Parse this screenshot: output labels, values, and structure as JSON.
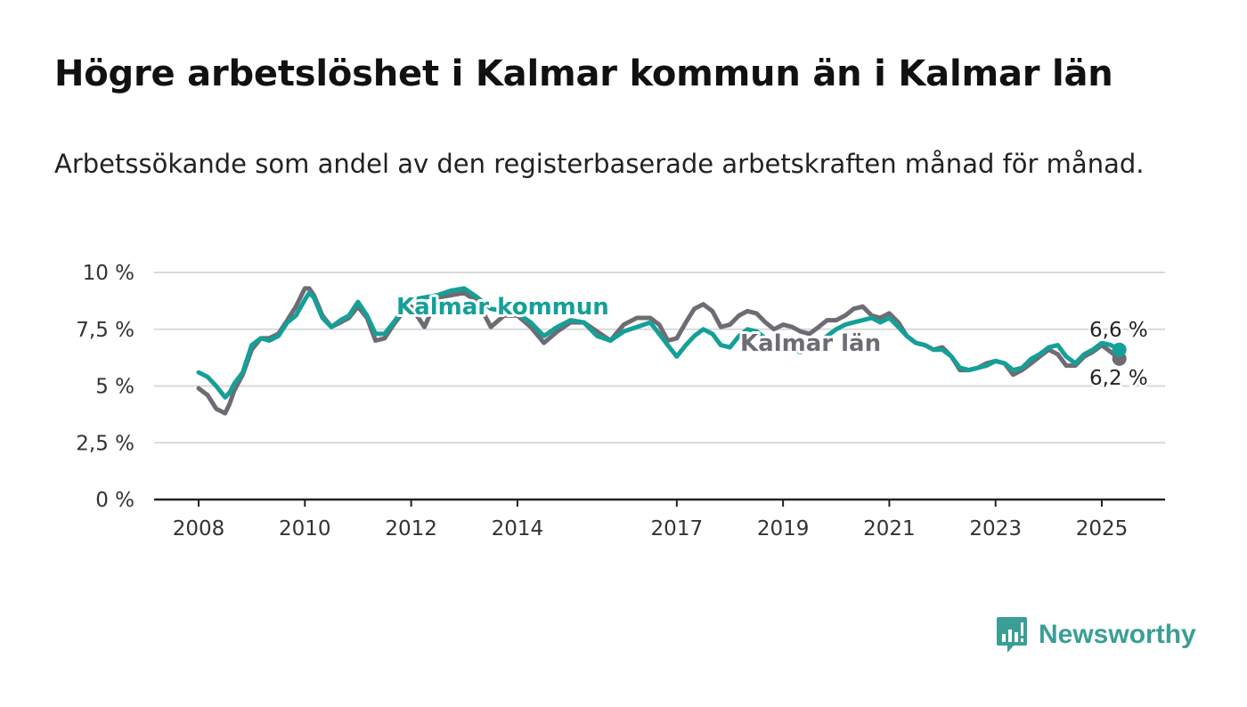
{
  "title": "Högre arbetslöshet i Kalmar kommun än i Kalmar län",
  "subtitle": "Arbetssökande som andel av den registerbaserade arbetskraften månad för månad.",
  "brand": {
    "name": "Newsworthy",
    "color": "#3a9e97"
  },
  "colors": {
    "kommun": "#14a098",
    "lan": "#6e6c72",
    "grid": "#d9d9d9",
    "axis": "#222222"
  },
  "chart_data": {
    "type": "line",
    "title": "Högre arbetslöshet i Kalmar kommun än i Kalmar län",
    "subtitle": "Arbetssökande som andel av den registerbaserade arbetskraften månad för månad.",
    "ylim": [
      0,
      10
    ],
    "y_ticks": [
      0,
      2.5,
      5,
      7.5,
      10
    ],
    "y_tick_labels": [
      "0 %",
      "2,5 %",
      "5 %",
      "7,5 %",
      "10 %"
    ],
    "x_ticks": [
      2008,
      2010,
      2012,
      2014,
      2017,
      2019,
      2021,
      2023,
      2025
    ],
    "x_tick_labels": [
      "2008",
      "2010",
      "2012",
      "2014",
      "2017",
      "2019",
      "2021",
      "2023",
      "2025"
    ],
    "xlim": [
      2007.0,
      2026.4
    ],
    "grid": true,
    "legend": "direct labels on lines",
    "series": [
      {
        "name": "Kalmar kommun",
        "x": [
          2008.0,
          2008.17,
          2008.33,
          2008.5,
          2008.58,
          2008.67,
          2008.83,
          2009.0,
          2009.17,
          2009.33,
          2009.5,
          2009.67,
          2009.83,
          2010.0,
          2010.08,
          2010.17,
          2010.33,
          2010.5,
          2010.67,
          2010.83,
          2011.0,
          2011.17,
          2011.33,
          2011.5,
          2011.67,
          2011.83,
          2012.0,
          2012.25,
          2012.5,
          2012.75,
          2013.0,
          2013.25,
          2013.5,
          2013.75,
          2014.0,
          2014.25,
          2014.5,
          2014.75,
          2015.0,
          2015.25,
          2015.5,
          2015.75,
          2016.0,
          2016.25,
          2016.5,
          2016.67,
          2016.83,
          2017.0,
          2017.17,
          2017.33,
          2017.5,
          2017.67,
          2017.83,
          2018.0,
          2018.17,
          2018.33,
          2018.5,
          2018.67,
          2018.83,
          2019.0,
          2019.17,
          2019.33,
          2019.5,
          2019.67,
          2019.83,
          2020.0,
          2020.17,
          2020.33,
          2020.5,
          2020.67,
          2020.83,
          2021.0,
          2021.17,
          2021.33,
          2021.5,
          2021.67,
          2021.83,
          2022.0,
          2022.17,
          2022.33,
          2022.5,
          2022.67,
          2022.83,
          2023.0,
          2023.17,
          2023.33,
          2023.5,
          2023.67,
          2023.83,
          2024.0,
          2024.17,
          2024.33,
          2024.5,
          2024.67,
          2024.83,
          2025.0,
          2025.17,
          2025.33
        ],
        "values": [
          5.6,
          5.4,
          5.0,
          4.5,
          4.7,
          5.1,
          5.6,
          6.8,
          7.1,
          7.0,
          7.2,
          7.8,
          8.1,
          8.8,
          9.1,
          8.9,
          8.0,
          7.6,
          7.9,
          8.1,
          8.7,
          8.1,
          7.3,
          7.3,
          7.8,
          8.3,
          8.8,
          8.9,
          9.0,
          9.2,
          9.3,
          8.9,
          8.4,
          8.3,
          8.2,
          7.8,
          7.2,
          7.6,
          7.9,
          7.8,
          7.2,
          7.0,
          7.4,
          7.6,
          7.8,
          7.3,
          6.8,
          6.3,
          6.8,
          7.2,
          7.5,
          7.3,
          6.8,
          6.7,
          7.2,
          7.5,
          7.4,
          7.1,
          7.0,
          6.8,
          6.6,
          6.5,
          6.7,
          6.9,
          7.2,
          7.5,
          7.7,
          7.8,
          7.9,
          8.0,
          7.8,
          8.0,
          7.6,
          7.2,
          6.9,
          6.8,
          6.6,
          6.6,
          6.3,
          5.8,
          5.7,
          5.8,
          5.9,
          6.1,
          6.0,
          5.7,
          5.8,
          6.2,
          6.4,
          6.7,
          6.8,
          6.3,
          6.0,
          6.4,
          6.6,
          6.9,
          6.8,
          6.6
        ]
      },
      {
        "name": "Kalmar län",
        "x": [
          2008.0,
          2008.17,
          2008.33,
          2008.5,
          2008.58,
          2008.67,
          2008.83,
          2009.0,
          2009.17,
          2009.33,
          2009.5,
          2009.67,
          2009.83,
          2010.0,
          2010.08,
          2010.17,
          2010.33,
          2010.5,
          2010.67,
          2010.83,
          2011.0,
          2011.17,
          2011.33,
          2011.5,
          2011.67,
          2011.83,
          2012.0,
          2012.25,
          2012.5,
          2012.75,
          2013.0,
          2013.25,
          2013.5,
          2013.75,
          2014.0,
          2014.25,
          2014.5,
          2014.75,
          2015.0,
          2015.25,
          2015.5,
          2015.75,
          2016.0,
          2016.25,
          2016.5,
          2016.67,
          2016.83,
          2017.0,
          2017.17,
          2017.33,
          2017.5,
          2017.67,
          2017.83,
          2018.0,
          2018.17,
          2018.33,
          2018.5,
          2018.67,
          2018.83,
          2019.0,
          2019.17,
          2019.33,
          2019.5,
          2019.67,
          2019.83,
          2020.0,
          2020.17,
          2020.33,
          2020.5,
          2020.67,
          2020.83,
          2021.0,
          2021.17,
          2021.33,
          2021.5,
          2021.67,
          2021.83,
          2022.0,
          2022.17,
          2022.33,
          2022.5,
          2022.67,
          2022.83,
          2023.0,
          2023.17,
          2023.33,
          2023.5,
          2023.67,
          2023.83,
          2024.0,
          2024.17,
          2024.33,
          2024.5,
          2024.67,
          2024.83,
          2025.0,
          2025.17,
          2025.33
        ],
        "values": [
          4.9,
          4.6,
          4.0,
          3.8,
          4.2,
          4.8,
          5.5,
          6.6,
          7.1,
          7.1,
          7.3,
          7.9,
          8.5,
          9.3,
          9.3,
          9.0,
          8.1,
          7.6,
          7.8,
          8.0,
          8.5,
          8.0,
          7.0,
          7.1,
          7.7,
          8.2,
          8.5,
          7.6,
          8.9,
          9.0,
          9.1,
          8.7,
          7.6,
          8.1,
          8.1,
          7.6,
          6.9,
          7.4,
          7.8,
          7.8,
          7.4,
          7.0,
          7.7,
          8.0,
          8.0,
          7.7,
          7.0,
          7.1,
          7.8,
          8.4,
          8.6,
          8.3,
          7.6,
          7.7,
          8.1,
          8.3,
          8.2,
          7.8,
          7.5,
          7.7,
          7.6,
          7.4,
          7.3,
          7.6,
          7.9,
          7.9,
          8.1,
          8.4,
          8.5,
          8.1,
          8.0,
          8.2,
          7.8,
          7.2,
          6.9,
          6.8,
          6.6,
          6.7,
          6.3,
          5.7,
          5.7,
          5.8,
          6.0,
          6.1,
          6.0,
          5.5,
          5.7,
          6.0,
          6.3,
          6.6,
          6.4,
          5.9,
          5.9,
          6.3,
          6.5,
          6.8,
          6.5,
          6.2
        ]
      }
    ],
    "annotations": [
      {
        "text": "Kalmar kommun",
        "series": "Kalmar kommun"
      },
      {
        "text": "Kalmar län",
        "series": "Kalmar län"
      },
      {
        "text": "6,6 %",
        "series": "Kalmar kommun",
        "at": "end"
      },
      {
        "text": "6,2 %",
        "series": "Kalmar län",
        "at": "end"
      }
    ]
  }
}
